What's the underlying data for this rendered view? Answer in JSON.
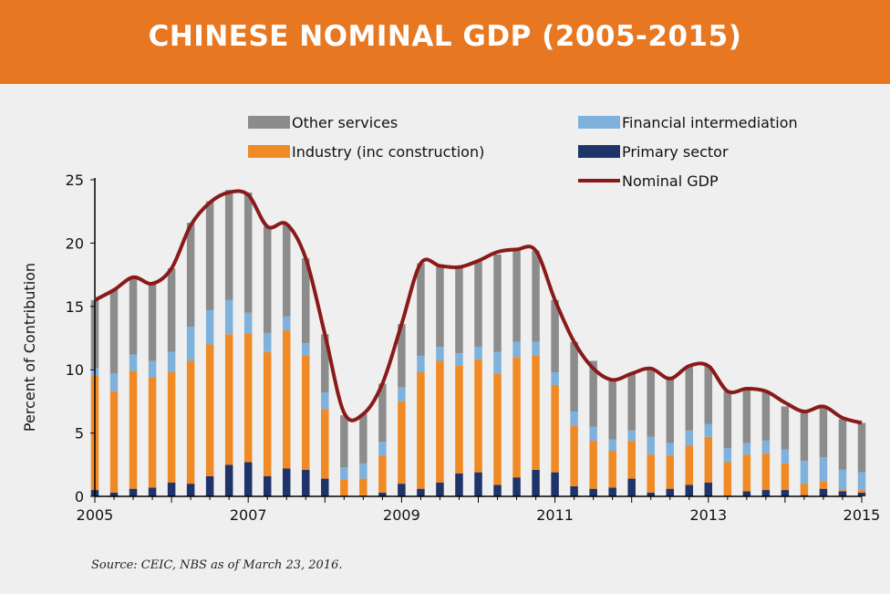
{
  "banner": {
    "title": "CHINESE NOMINAL GDP (2005-2015)"
  },
  "source": "Source: CEIC, NBS as of March 23, 2016.",
  "colors": {
    "banner": "#e87722",
    "other_services": "#8c8c8c",
    "financial_intermediation": "#7eb2dc",
    "industry": "#f08a24",
    "primary_sector": "#1e3369",
    "nominal_gdp": "#8a1a1a"
  },
  "chart_data": {
    "type": "bar",
    "stacked": true,
    "title": "CHINESE NOMINAL GDP (2005-2015)",
    "ylabel": "Percent of Contribution",
    "xlabel": "",
    "ylim": [
      0,
      25
    ],
    "xlim": [
      2005,
      2015
    ],
    "yticks": [
      "0",
      "5",
      "10",
      "15",
      "20",
      "25"
    ],
    "xticks": [
      "2005",
      "2007",
      "2009",
      "2011",
      "2013",
      "2015"
    ],
    "legend": [
      "Other services",
      "Financial intermediation",
      "Industry (inc construction)",
      "Primary sector",
      "Nominal GDP"
    ],
    "legend_position": "top",
    "x": [
      2005.0,
      2005.25,
      2005.5,
      2005.75,
      2006.0,
      2006.25,
      2006.5,
      2006.75,
      2007.0,
      2007.25,
      2007.5,
      2007.75,
      2008.0,
      2008.25,
      2008.5,
      2008.75,
      2009.0,
      2009.25,
      2009.5,
      2009.75,
      2010.0,
      2010.25,
      2010.5,
      2010.75,
      2011.0,
      2011.25,
      2011.5,
      2011.75,
      2012.0,
      2012.25,
      2012.5,
      2012.75,
      2013.0,
      2013.25,
      2013.5,
      2013.75,
      2014.0,
      2014.25,
      2014.5,
      2014.75,
      2015.0
    ],
    "series": [
      {
        "name": "Primary sector",
        "kind": "bar",
        "values": [
          0.5,
          0.3,
          0.6,
          0.7,
          1.1,
          1.0,
          1.6,
          2.5,
          2.7,
          1.6,
          2.2,
          2.1,
          1.4,
          0.0,
          0.0,
          0.3,
          1.0,
          0.6,
          1.1,
          1.8,
          1.9,
          0.9,
          1.5,
          2.1,
          1.9,
          0.8,
          0.6,
          0.7,
          1.4,
          0.3,
          0.6,
          0.9,
          1.1,
          0.0,
          0.4,
          0.5,
          0.5,
          0.1,
          0.6,
          0.4,
          0.3
        ]
      },
      {
        "name": "Industry (inc construction)",
        "kind": "bar",
        "values": [
          9.0,
          8.0,
          9.3,
          8.7,
          8.7,
          9.7,
          10.4,
          10.3,
          10.2,
          9.8,
          10.9,
          9.0,
          5.5,
          1.3,
          1.4,
          2.9,
          6.5,
          9.2,
          9.6,
          8.5,
          8.9,
          8.8,
          9.5,
          9.0,
          6.9,
          4.8,
          3.8,
          2.9,
          3.0,
          3.0,
          2.6,
          3.1,
          3.6,
          2.7,
          2.9,
          2.9,
          2.1,
          0.9,
          0.6,
          0.1,
          0.2
        ]
      },
      {
        "name": "Financial intermediation",
        "kind": "bar",
        "values": [
          0.6,
          1.4,
          1.3,
          1.3,
          1.6,
          2.7,
          2.7,
          2.7,
          1.6,
          1.5,
          1.1,
          1.0,
          1.3,
          1.0,
          1.2,
          1.1,
          1.1,
          1.3,
          1.1,
          1.0,
          1.0,
          1.7,
          1.2,
          1.1,
          1.0,
          1.1,
          1.1,
          0.9,
          0.8,
          1.4,
          1.0,
          1.2,
          1.0,
          1.1,
          0.9,
          1.0,
          1.1,
          1.8,
          1.9,
          1.6,
          1.4
        ]
      },
      {
        "name": "Other services",
        "kind": "bar",
        "values": [
          5.4,
          6.6,
          6.1,
          6.1,
          6.6,
          8.2,
          8.6,
          8.7,
          9.5,
          8.4,
          7.3,
          6.7,
          4.6,
          4.1,
          3.9,
          4.6,
          5.0,
          7.3,
          6.4,
          6.8,
          6.8,
          7.7,
          7.3,
          7.2,
          5.7,
          5.5,
          5.2,
          4.7,
          4.5,
          5.4,
          5.1,
          5.1,
          4.6,
          4.5,
          4.3,
          3.9,
          3.4,
          3.9,
          4.0,
          4.0,
          3.9
        ]
      },
      {
        "name": "Nominal GDP",
        "kind": "line",
        "values": [
          15.5,
          16.3,
          17.3,
          16.8,
          18.0,
          21.4,
          23.2,
          24.0,
          23.8,
          21.3,
          21.5,
          18.8,
          12.8,
          6.6,
          6.5,
          8.9,
          13.6,
          18.4,
          18.2,
          18.1,
          18.6,
          19.3,
          19.5,
          19.4,
          15.5,
          12.2,
          10.1,
          9.2,
          9.7,
          10.1,
          9.3,
          10.3,
          10.3,
          8.3,
          8.5,
          8.3,
          7.4,
          6.7,
          7.1,
          6.2,
          5.8
        ]
      }
    ]
  },
  "legend_label_map": {
    "other_services": "Other services",
    "financial_intermediation": "Financial intermediation",
    "industry": "Industry (inc construction)",
    "primary_sector": "Primary sector",
    "nominal_gdp": "Nominal GDP"
  }
}
